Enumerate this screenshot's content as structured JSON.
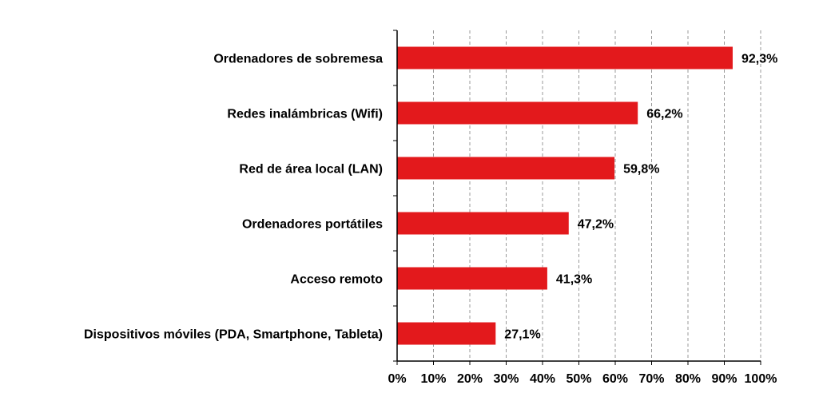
{
  "chart_data": {
    "type": "bar",
    "orientation": "horizontal",
    "categories": [
      "Ordenadores  de sobremesa",
      "Redes inalámbricas (Wifi)",
      "Red de área  local (LAN)",
      "Ordenadores  portátiles",
      "Acceso  remoto",
      "Dispositivos móviles (PDA,  Smartphone,  Tableta)"
    ],
    "values": [
      92.3,
      66.2,
      59.8,
      47.2,
      41.3,
      27.1
    ],
    "value_labels": [
      "92,3%",
      "66,2%",
      "59,8%",
      "47,2%",
      "41,3%",
      "27,1%"
    ],
    "xlim": [
      0,
      100
    ],
    "xticks": [
      0,
      10,
      20,
      30,
      40,
      50,
      60,
      70,
      80,
      90,
      100
    ],
    "xtick_labels": [
      "0%",
      "10%",
      "20%",
      "30%",
      "40%",
      "50%",
      "60%",
      "70%",
      "80%",
      "90%",
      "100%"
    ],
    "title": "",
    "xlabel": "",
    "ylabel": "",
    "grid": "vertical dashed",
    "legend": "none",
    "bar_color": "#e3191c",
    "grid_color": "#999999",
    "axis_color": "#000000"
  }
}
